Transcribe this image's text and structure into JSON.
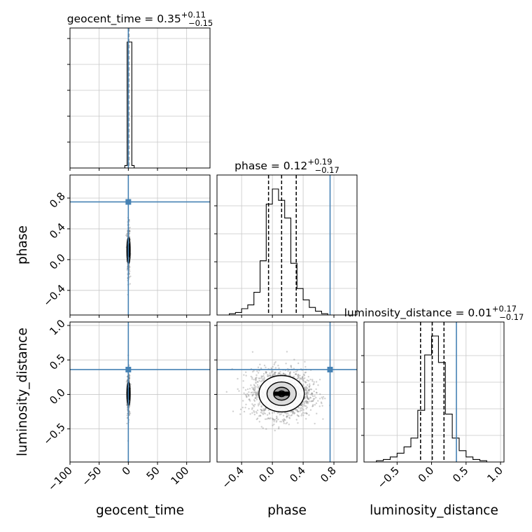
{
  "chart_data": {
    "type": "corner",
    "parameters": [
      {
        "name": "geocent_time",
        "label": "geocent_time",
        "median": 0.35,
        "plus": 0.11,
        "minus": 0.15,
        "truth": 0.0,
        "range": [
          -100,
          140
        ],
        "ticks": [
          -100,
          -50,
          0,
          50,
          100
        ],
        "tick_labels": [
          "−100",
          "−50",
          "0",
          "50",
          "100"
        ]
      },
      {
        "name": "phase",
        "label": "phase",
        "median": 0.12,
        "plus": 0.19,
        "minus": 0.17,
        "truth": 0.75,
        "range": [
          -0.72,
          1.1
        ],
        "ticks": [
          -0.4,
          0.0,
          0.4,
          0.8
        ],
        "tick_labels": [
          "−0.4",
          "0.0",
          "0.4",
          "0.8"
        ]
      },
      {
        "name": "luminosity_distance",
        "label": "luminosity_distance",
        "median": 0.01,
        "plus": 0.17,
        "minus": 0.17,
        "truth": 0.36,
        "range": [
          -0.98,
          1.05
        ],
        "ticks": [
          -0.5,
          0.0,
          0.5,
          1.0
        ],
        "tick_labels": [
          "−0.5",
          "0.0",
          "0.5",
          "1.0"
        ]
      }
    ],
    "titles": {
      "geocent_time": {
        "prefix": "geocent_time = 0.35",
        "sup": "+0.11",
        "sub": "−0.15"
      },
      "phase": {
        "prefix": "phase = 0.12",
        "sup": "+0.19",
        "sub": "−0.17"
      },
      "luminosity_distance": {
        "prefix": "luminosity_distance = 0.01",
        "sup": "+0.17",
        "sub": "−0.17"
      }
    },
    "histograms": {
      "geocent_time": {
        "bin_edges": [
          -6,
          -2,
          6,
          10,
          14
        ],
        "counts": [
          0.02,
          1.0,
          0.02,
          0.0
        ]
      },
      "phase": {
        "bin_edges": [
          -0.72,
          -0.64,
          -0.56,
          -0.48,
          -0.4,
          -0.32,
          -0.24,
          -0.16,
          -0.08,
          0.0,
          0.08,
          0.16,
          0.24,
          0.32,
          0.4,
          0.48,
          0.56,
          0.64,
          0.72,
          0.8,
          0.88,
          0.96,
          1.04
        ],
        "counts": [
          0.0,
          0.0,
          0.01,
          0.02,
          0.05,
          0.08,
          0.18,
          0.43,
          0.88,
          1.0,
          0.91,
          0.77,
          0.41,
          0.21,
          0.12,
          0.06,
          0.03,
          0.01,
          0.0,
          0.0,
          0.0,
          0.0
        ]
      },
      "luminosity_distance": {
        "bin_edges": [
          -0.9,
          -0.8,
          -0.7,
          -0.6,
          -0.5,
          -0.4,
          -0.3,
          -0.2,
          -0.1,
          0.0,
          0.1,
          0.2,
          0.3,
          0.4,
          0.5,
          0.6,
          0.7,
          0.8,
          0.9
        ],
        "counts": [
          0.0,
          0.01,
          0.02,
          0.04,
          0.07,
          0.12,
          0.19,
          0.41,
          0.85,
          1.0,
          0.79,
          0.38,
          0.19,
          0.09,
          0.04,
          0.02,
          0.01,
          0.0
        ]
      }
    },
    "grid": true
  }
}
